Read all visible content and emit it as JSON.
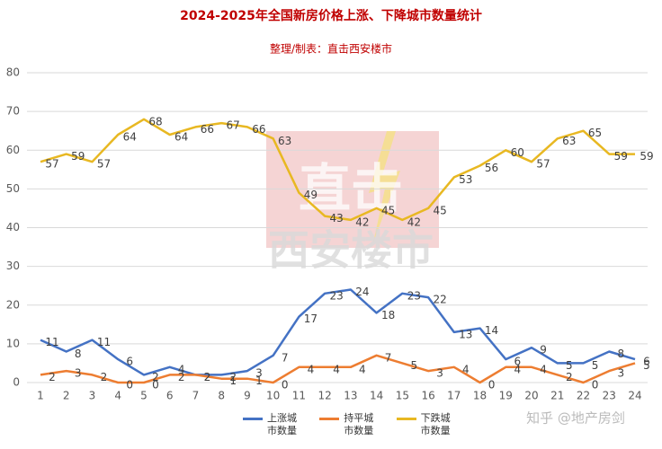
{
  "chart_data": {
    "type": "line",
    "title": "2024-2025年全国新房价格上涨、下降城市数量统计",
    "subtitle": "整理/制表：直击西安楼市",
    "watermark": [
      "直击",
      "西安楼市"
    ],
    "credit": "知乎 @地产房剑",
    "categories": [
      "1",
      "2",
      "3",
      "4",
      "5",
      "6",
      "7",
      "8",
      "9",
      "10",
      "11",
      "12",
      "13",
      "14",
      "15",
      "16",
      "17",
      "18",
      "19",
      "20",
      "21",
      "22",
      "23",
      "24"
    ],
    "series": [
      {
        "name": "上涨城市数量",
        "color": "#4472c4",
        "values": [
          11,
          8,
          11,
          6,
          2,
          4,
          2,
          2,
          3,
          7,
          17,
          23,
          24,
          18,
          23,
          22,
          13,
          14,
          6,
          9,
          5,
          5,
          8,
          6
        ]
      },
      {
        "name": "持平城市数量",
        "color": "#ed7d31",
        "values": [
          2,
          3,
          2,
          0,
          0,
          2,
          2,
          1,
          1,
          0,
          4,
          4,
          4,
          7,
          5,
          3,
          4,
          0,
          4,
          4,
          2,
          0,
          3,
          5
        ]
      },
      {
        "name": "下跌城市数量",
        "color": "#e8b822",
        "values": [
          57,
          59,
          57,
          64,
          68,
          64,
          66,
          67,
          66,
          63,
          49,
          43,
          42,
          45,
          42,
          45,
          53,
          56,
          60,
          57,
          63,
          65,
          59,
          59
        ]
      }
    ],
    "ylim": [
      0,
      80
    ],
    "yticks": [
      0,
      10,
      20,
      30,
      40,
      50,
      60,
      70,
      80
    ],
    "grid": true
  }
}
